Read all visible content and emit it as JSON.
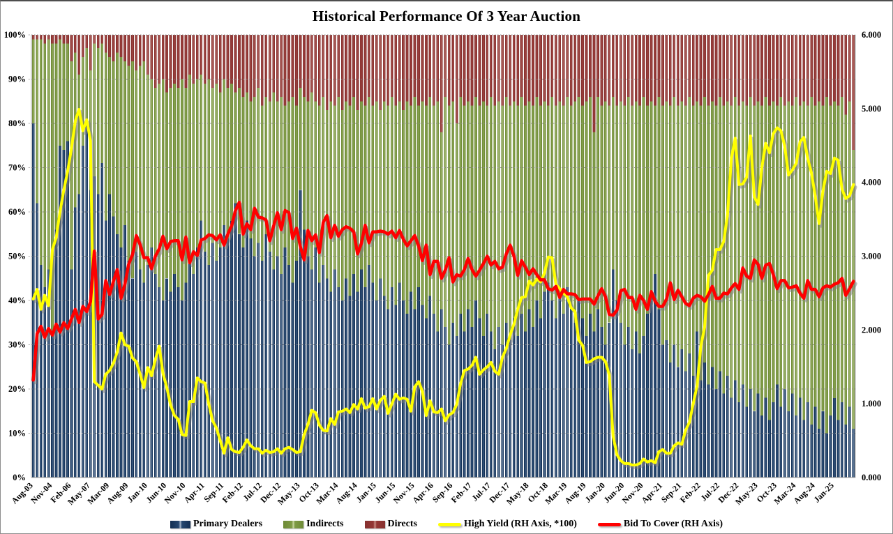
{
  "title": "Historical Performance Of 3 Year Auction",
  "legend": {
    "items": [
      {
        "label": "Primary Dealers",
        "type": "bar",
        "color": "#17365D"
      },
      {
        "label": "Indirects",
        "type": "bar",
        "color": "#7E9A44"
      },
      {
        "label": "Directs",
        "type": "bar",
        "color": "#943634"
      },
      {
        "label": "High Yield (RH Axis, *100)",
        "type": "line",
        "color": "#FFFF00"
      },
      {
        "label": "Bid To Cover (RH Axis)",
        "type": "line",
        "color": "#FF0000"
      }
    ]
  },
  "colors": {
    "primary_dealers": "#17365D",
    "indirects": "#7E9A44",
    "directs": "#943634",
    "high_yield_line": "#FFFF00",
    "bid_to_cover_line": "#FF0000",
    "gridline": "#8c8c8c",
    "background": "#ffffff"
  },
  "chart_data": {
    "type": "combo",
    "subtype": "100%-stacked-bar with two overlay lines",
    "title": "Historical Performance Of 3 Year Auction",
    "legend_position": "bottom",
    "grid": "horizontal dotted lines every 10%",
    "bar_count": 216,
    "label_every_n_bars": 5,
    "x_labels": [
      "Aug-03",
      "Nov-04",
      "Feb-06",
      "May-07",
      "Mar-09",
      "Aug-09",
      "Jan-10",
      "Jun-10",
      "Nov-10",
      "Apr-11",
      "Sep-11",
      "Feb-12",
      "Jul-12",
      "Dec-12",
      "May-13",
      "Oct-13",
      "Mar-14",
      "Aug-14",
      "Jan-15",
      "Jun-15",
      "Nov-15",
      "Apr-16",
      "Sep-16",
      "Feb-17",
      "Jul-17",
      "Dec-17",
      "May-18",
      "Oct-18",
      "Mar-19",
      "Aug-19",
      "Jan-20",
      "Jun-20",
      "Nov-20",
      "Apr-21",
      "Sep-21",
      "Feb-22",
      "Jul-22",
      "Dec-22",
      "May-23",
      "Oct-23",
      "Mar-24",
      "Aug-24",
      "Jan-25"
    ],
    "axes": {
      "left": {
        "min": 0,
        "max": 100,
        "ticks": [
          "0%",
          "10%",
          "20%",
          "30%",
          "40%",
          "50%",
          "60%",
          "70%",
          "80%",
          "90%",
          "100%"
        ]
      },
      "right": {
        "min": 0,
        "max": 6,
        "ticks": [
          "0.000",
          "1.000",
          "2.000",
          "3.000",
          "4.000",
          "5.000",
          "6.000"
        ]
      }
    },
    "series": {
      "primary_dealers_pct": [
        80,
        62,
        48,
        43,
        47,
        33,
        56,
        75,
        74,
        76,
        47,
        61,
        64,
        75,
        81,
        65,
        68,
        64,
        71,
        58,
        64,
        59,
        55,
        52,
        57,
        49,
        45,
        51,
        47,
        44,
        48,
        52,
        46,
        43,
        40,
        45,
        42,
        46,
        43,
        40,
        44,
        50,
        46,
        52,
        58,
        51,
        48,
        53,
        49,
        52,
        57,
        54,
        58,
        62,
        55,
        52,
        58,
        54,
        50,
        53,
        49,
        55,
        51,
        47,
        50,
        46,
        52,
        48,
        44,
        49,
        65,
        56,
        50,
        47,
        52,
        44,
        48,
        45,
        42,
        47,
        43,
        40,
        45,
        41,
        46,
        42,
        47,
        43,
        48,
        44,
        40,
        45,
        41,
        38,
        43,
        39,
        44,
        40,
        37,
        42,
        38,
        43,
        39,
        36,
        41,
        37,
        33,
        38,
        34,
        30,
        35,
        32,
        37,
        33,
        38,
        34,
        40,
        36,
        32,
        37,
        33,
        29,
        34,
        30,
        35,
        31,
        36,
        32,
        37,
        33,
        38,
        34,
        40,
        36,
        42,
        44,
        40,
        36,
        41,
        37,
        43,
        39,
        35,
        40,
        36,
        32,
        37,
        33,
        38,
        34,
        30,
        35,
        47,
        40,
        35,
        30,
        34,
        29,
        33,
        28,
        32,
        37,
        42,
        46,
        38,
        30,
        31,
        26,
        30,
        25,
        29,
        24,
        28,
        23,
        33,
        22,
        26,
        21,
        25,
        20,
        24,
        19,
        23,
        18,
        22,
        17,
        21,
        16,
        20,
        15,
        19,
        14,
        18,
        13,
        17,
        21,
        16,
        20,
        15,
        19,
        14,
        18,
        13,
        17,
        12,
        16,
        11,
        15,
        10,
        14,
        18,
        13,
        17,
        12,
        16,
        11
      ],
      "directs_pct": [
        1,
        1,
        1,
        2,
        1,
        2,
        2,
        1,
        2,
        2,
        6,
        4,
        9,
        5,
        3,
        8,
        2,
        3,
        2,
        4,
        5,
        6,
        4,
        5,
        6,
        7,
        6,
        8,
        7,
        6,
        9,
        10,
        12,
        11,
        10,
        13,
        12,
        11,
        12,
        10,
        12,
        9,
        11,
        10,
        9,
        11,
        10,
        12,
        11,
        13,
        10,
        12,
        11,
        13,
        12,
        14,
        13,
        15,
        14,
        12,
        16,
        14,
        15,
        13,
        15,
        14,
        16,
        15,
        14,
        16,
        12,
        14,
        15,
        13,
        15,
        16,
        14,
        17,
        15,
        16,
        14,
        17,
        15,
        16,
        14,
        17,
        15,
        16,
        14,
        16,
        15,
        17,
        15,
        16,
        14,
        16,
        15,
        17,
        15,
        16,
        14,
        16,
        15,
        16,
        14,
        16,
        15,
        22,
        14,
        16,
        15,
        20,
        14,
        16,
        15,
        16,
        14,
        16,
        15,
        16,
        14,
        16,
        15,
        16,
        14,
        16,
        15,
        16,
        14,
        16,
        15,
        16,
        14,
        16,
        15,
        16,
        14,
        16,
        15,
        16,
        14,
        16,
        15,
        14,
        16,
        15,
        14,
        22,
        14,
        16,
        15,
        16,
        14,
        16,
        15,
        16,
        14,
        16,
        15,
        16,
        14,
        16,
        15,
        16,
        14,
        16,
        15,
        16,
        14,
        16,
        15,
        16,
        14,
        16,
        15,
        16,
        14,
        16,
        15,
        16,
        14,
        16,
        15,
        16,
        14,
        16,
        15,
        16,
        14,
        16,
        15,
        16,
        14,
        16,
        15,
        16,
        14,
        16,
        15,
        16,
        14,
        16,
        15,
        16,
        14,
        16,
        15,
        16,
        14,
        16,
        15,
        16,
        14,
        18,
        15,
        26
      ],
      "indirects_pct_rule": "100 - primary_dealers_pct - directs_pct (bars stack to 100%)",
      "high_yield_rh": [
        2.42,
        2.55,
        2.28,
        2.47,
        2.33,
        3.09,
        3.25,
        3.6,
        3.9,
        4.15,
        4.46,
        4.83,
        4.99,
        4.7,
        4.85,
        4.56,
        1.3,
        1.25,
        1.2,
        1.4,
        1.45,
        1.55,
        1.7,
        1.96,
        1.8,
        1.78,
        1.62,
        1.57,
        1.4,
        1.22,
        1.49,
        1.38,
        1.6,
        1.78,
        1.41,
        1.22,
        0.98,
        0.84,
        0.79,
        0.58,
        0.57,
        1.03,
        1.03,
        1.35,
        1.3,
        1.28,
        1.0,
        0.77,
        0.67,
        0.5,
        0.33,
        0.54,
        0.38,
        0.35,
        0.34,
        0.41,
        0.51,
        0.43,
        0.39,
        0.39,
        0.33,
        0.37,
        0.34,
        0.35,
        0.39,
        0.33,
        0.39,
        0.41,
        0.38,
        0.34,
        0.35,
        0.58,
        0.72,
        0.91,
        0.88,
        0.71,
        0.64,
        0.63,
        0.8,
        0.72,
        0.89,
        0.9,
        0.93,
        0.88,
        0.99,
        0.93,
        1.07,
        0.94,
        0.96,
        1.07,
        0.93,
        1.05,
        1.1,
        0.87,
        1.0,
        1.13,
        1.06,
        1.08,
        1.06,
        0.9,
        1.23,
        1.3,
        1.17,
        0.84,
        1.04,
        0.89,
        0.88,
        0.93,
        0.77,
        0.85,
        0.88,
        0.99,
        1.27,
        1.45,
        1.47,
        1.52,
        1.63,
        1.4,
        1.46,
        1.5,
        1.56,
        1.44,
        1.4,
        1.63,
        1.75,
        1.93,
        2.08,
        2.28,
        2.44,
        2.45,
        2.66,
        2.61,
        2.69,
        2.65,
        2.77,
        2.99,
        2.98,
        2.62,
        2.56,
        2.5,
        2.45,
        2.3,
        2.25,
        1.86,
        1.79,
        1.56,
        1.57,
        1.61,
        1.63,
        1.63,
        1.57,
        1.39,
        0.56,
        0.31,
        0.23,
        0.19,
        0.19,
        0.17,
        0.17,
        0.19,
        0.25,
        0.21,
        0.23,
        0.2,
        0.35,
        0.38,
        0.33,
        0.33,
        0.43,
        0.47,
        0.45,
        0.64,
        0.75,
        1.0,
        1.24,
        1.78,
        2.04,
        2.74,
        2.81,
        3.09,
        3.09,
        3.2,
        3.56,
        4.32,
        4.6,
        3.97,
        3.98,
        4.07,
        4.63,
        3.81,
        3.7,
        4.2,
        4.53,
        4.4,
        4.66,
        4.74,
        4.7,
        4.49,
        4.1,
        4.17,
        4.26,
        4.55,
        4.61,
        4.33,
        4.13,
        3.81,
        3.44,
        3.88,
        4.15,
        4.12,
        4.33,
        4.3,
        3.91,
        3.78,
        3.82,
        3.97
      ],
      "bid_to_cover_rh": [
        1.32,
        1.95,
        2.05,
        1.9,
        2.02,
        1.93,
        2.08,
        1.97,
        2.1,
        2.02,
        2.15,
        2.28,
        2.1,
        2.32,
        2.25,
        2.38,
        3.07,
        2.15,
        2.21,
        2.67,
        2.48,
        2.66,
        2.82,
        2.43,
        2.62,
        2.89,
        3.02,
        3.28,
        3.16,
        2.98,
        2.98,
        2.83,
        3.0,
        3.1,
        3.27,
        3.1,
        3.2,
        3.21,
        3.21,
        2.95,
        3.26,
        2.91,
        3.06,
        3.01,
        3.22,
        3.24,
        3.29,
        3.28,
        3.22,
        3.29,
        3.15,
        3.3,
        3.41,
        3.62,
        3.73,
        3.3,
        3.44,
        3.36,
        3.65,
        3.53,
        3.52,
        3.49,
        3.21,
        3.41,
        3.59,
        3.36,
        3.62,
        3.59,
        3.24,
        3.38,
        3.13,
        2.95,
        3.35,
        3.21,
        3.29,
        3.05,
        3.46,
        3.55,
        3.25,
        3.42,
        3.27,
        3.36,
        3.4,
        3.38,
        3.33,
        3.03,
        3.17,
        3.42,
        3.18,
        3.33,
        3.33,
        3.34,
        3.33,
        3.3,
        3.34,
        3.25,
        3.35,
        3.23,
        3.14,
        3.21,
        3.28,
        3.14,
        2.94,
        3.15,
        2.75,
        2.93,
        2.93,
        2.7,
        2.81,
        2.98,
        2.65,
        2.75,
        2.73,
        2.82,
        2.97,
        2.82,
        2.73,
        2.81,
        2.9,
        3.0,
        2.88,
        2.93,
        2.83,
        2.85,
        3.03,
        3.15,
        3.0,
        2.74,
        2.94,
        2.85,
        2.75,
        2.83,
        2.75,
        2.68,
        2.68,
        2.56,
        2.54,
        2.59,
        2.44,
        2.55,
        2.49,
        2.49,
        2.48,
        2.41,
        2.42,
        2.42,
        2.42,
        2.35,
        2.46,
        2.56,
        2.45,
        2.21,
        2.2,
        2.27,
        2.53,
        2.55,
        2.44,
        2.44,
        2.28,
        2.47,
        2.4,
        2.28,
        2.52,
        2.39,
        2.32,
        2.32,
        2.42,
        2.64,
        2.41,
        2.54,
        2.45,
        2.36,
        2.33,
        2.43,
        2.47,
        2.45,
        2.39,
        2.48,
        2.59,
        2.43,
        2.43,
        2.5,
        2.49,
        2.57,
        2.63,
        2.55,
        2.84,
        2.73,
        2.7,
        2.95,
        2.89,
        2.7,
        2.88,
        2.9,
        2.75,
        2.56,
        2.67,
        2.67,
        2.57,
        2.58,
        2.6,
        2.5,
        2.43,
        2.67,
        2.55,
        2.55,
        2.45,
        2.57,
        2.6,
        2.58,
        2.62,
        2.64,
        2.7,
        2.47,
        2.56,
        2.66
      ]
    }
  }
}
